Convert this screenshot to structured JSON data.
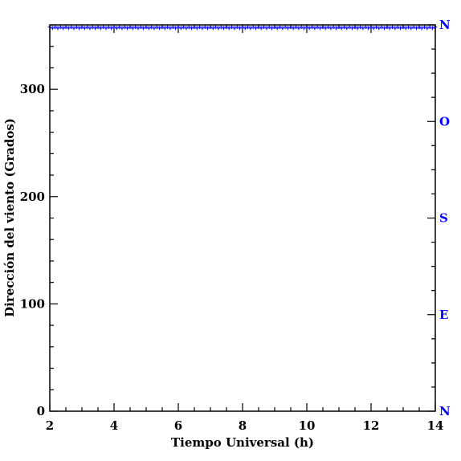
{
  "chart_data": {
    "type": "scatter",
    "xlabel": "Tiempo Universal (h)",
    "ylabel": "Dirección del viento (Grados)",
    "xlim": [
      2,
      14
    ],
    "ylim": [
      0,
      360
    ],
    "x_ticks": [
      2,
      4,
      6,
      8,
      10,
      12,
      14
    ],
    "x_tick_labels": [
      "2",
      "4",
      "6",
      "8",
      "10",
      "12",
      "14"
    ],
    "y_ticks": [
      0,
      100,
      200,
      300
    ],
    "y_tick_labels": [
      "0",
      "100",
      "200",
      "300"
    ],
    "compass_axis": {
      "side": "right",
      "labels": [
        {
          "text": "N",
          "value": 0
        },
        {
          "text": "E",
          "value": 90
        },
        {
          "text": "S",
          "value": 180
        },
        {
          "text": "O",
          "value": 270
        },
        {
          "text": "N",
          "value": 360
        }
      ],
      "color": "#0000ff"
    },
    "series": [
      {
        "color": "#0000ff",
        "marker": "plus",
        "x_start": 2.0,
        "x_end": 14.0,
        "x_step": 0.0833,
        "y_values": [
          358,
          357
        ]
      }
    ],
    "grid": false
  }
}
